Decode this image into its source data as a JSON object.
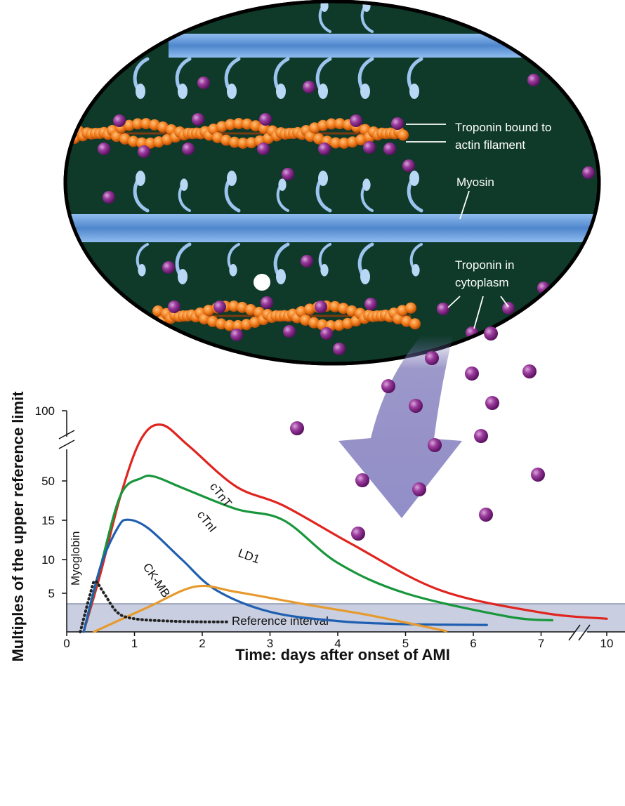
{
  "diagram": {
    "labels": {
      "bound": [
        "Troponin bound to",
        "actin filament"
      ],
      "myosin": "Myosin",
      "cyto": [
        "Troponin in",
        "cytoplasm"
      ]
    }
  },
  "colors": {
    "cTnT": "#e0241f",
    "cTnI": "#18963c",
    "CK-MB": "#1f5fb0",
    "LD1": "#e69a2e",
    "Myoglobin": "#222222",
    "cell": "#0f3a2a",
    "troponin": "#8a2a8c",
    "actin": "#f07a1a",
    "myosin": "#5f95d6",
    "reference_band": "#c9cfe0"
  },
  "chart_data": {
    "type": "line",
    "xlabel": "Time: days after onset of AMI",
    "ylabel": "Multiples of the upper reference limit",
    "x_ticks": [
      "0",
      "1",
      "2",
      "3",
      "4",
      "5",
      "6",
      "7",
      "10"
    ],
    "y_ticks": [
      "5",
      "10",
      "15",
      "50",
      "100"
    ],
    "axis_breaks": [
      "y between 15 and 100",
      "x between 7 and 10"
    ],
    "reference_band_label": "Reference interval",
    "series": [
      {
        "name": "cTnT",
        "points": [
          [
            0.25,
            0
          ],
          [
            0.5,
            8
          ],
          [
            0.8,
            38
          ],
          [
            1.1,
            80
          ],
          [
            1.4,
            90
          ],
          [
            1.8,
            75
          ],
          [
            2.5,
            45
          ],
          [
            3.2,
            28
          ],
          [
            4.2,
            12
          ],
          [
            5.5,
            5.5
          ],
          [
            7,
            2.5
          ],
          [
            10,
            1.7
          ]
        ]
      },
      {
        "name": "cTnI",
        "points": [
          [
            0.25,
            0
          ],
          [
            0.5,
            9
          ],
          [
            0.8,
            38
          ],
          [
            1.1,
            52
          ],
          [
            1.3,
            53
          ],
          [
            1.7,
            44
          ],
          [
            2.5,
            25
          ],
          [
            3.2,
            15
          ],
          [
            4,
            9.5
          ],
          [
            5,
            5
          ],
          [
            6.5,
            2
          ],
          [
            7.5,
            1.5
          ]
        ]
      },
      {
        "name": "CK-MB",
        "points": [
          [
            0.25,
            0
          ],
          [
            0.5,
            9
          ],
          [
            0.75,
            14
          ],
          [
            0.9,
            15.5
          ],
          [
            1.2,
            14
          ],
          [
            1.7,
            10
          ],
          [
            2.2,
            5.5
          ],
          [
            3,
            2.6
          ],
          [
            4,
            1.4
          ],
          [
            5,
            1
          ],
          [
            6.2,
            0.9
          ]
        ]
      },
      {
        "name": "LD1",
        "points": [
          [
            0.4,
            0
          ],
          [
            1.2,
            3.2
          ],
          [
            1.9,
            6
          ],
          [
            2.5,
            5.2
          ],
          [
            3.5,
            3.6
          ],
          [
            4.5,
            2.1
          ],
          [
            5.6,
            0.1
          ]
        ]
      },
      {
        "name": "Myoglobin",
        "points": [
          [
            0.2,
            0
          ],
          [
            0.35,
            5
          ],
          [
            0.42,
            6.8
          ],
          [
            0.55,
            5
          ],
          [
            0.75,
            2.5
          ],
          [
            1,
            1.7
          ],
          [
            1.5,
            1.4
          ],
          [
            2,
            1.3
          ],
          [
            2.4,
            1.3
          ]
        ]
      }
    ]
  }
}
